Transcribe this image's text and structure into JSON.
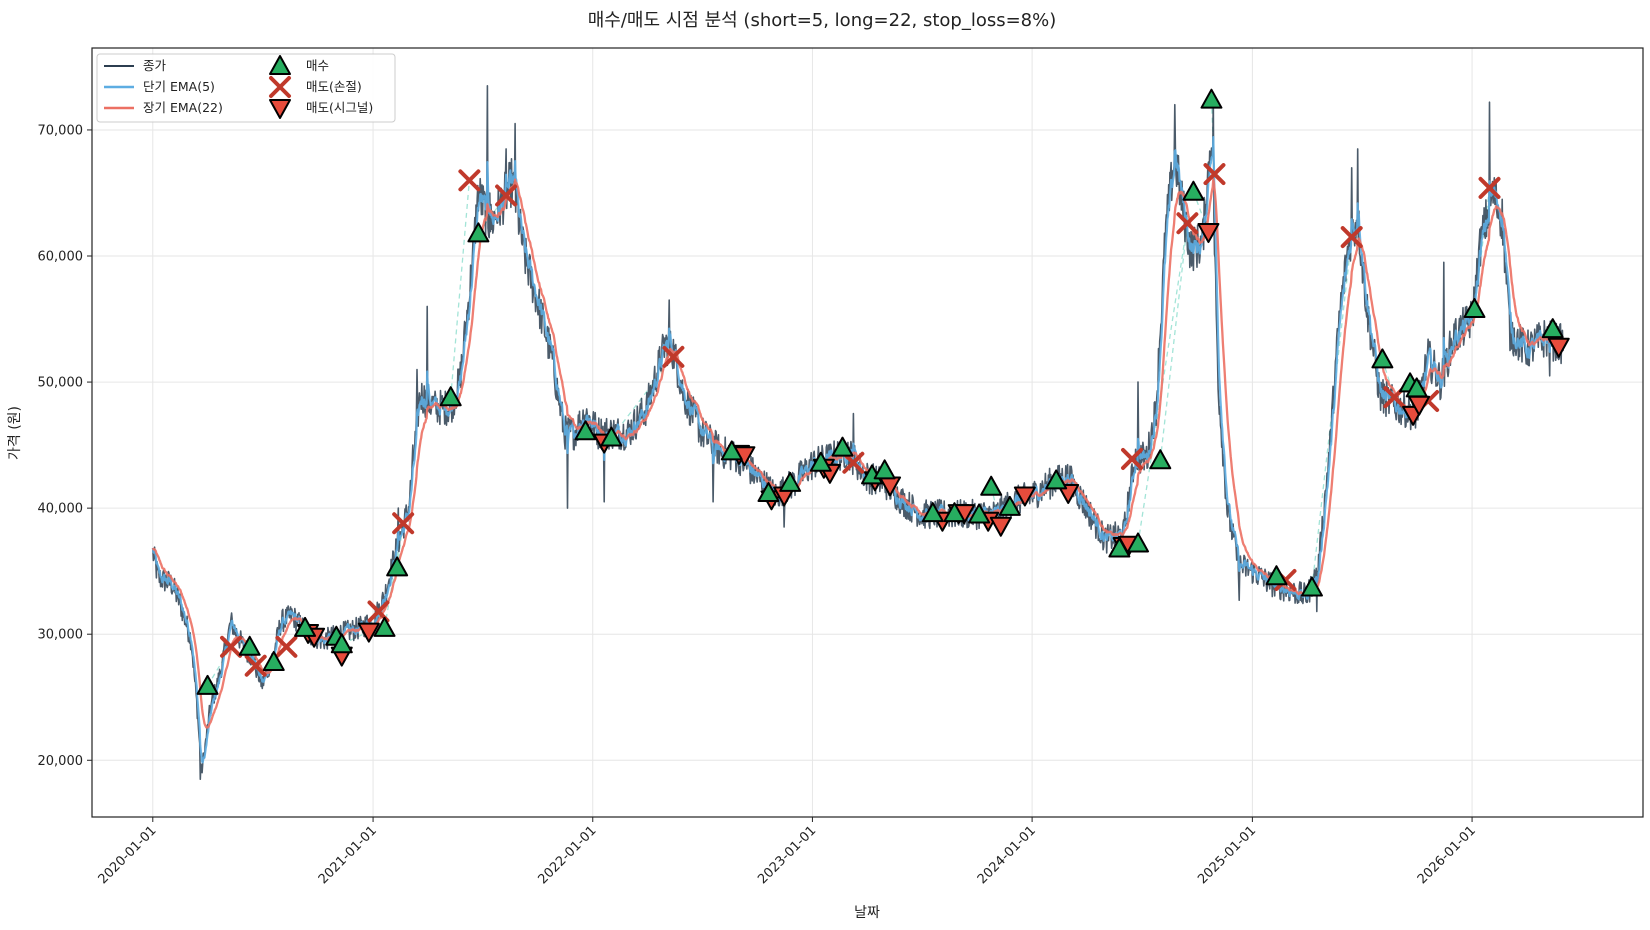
{
  "chart_data": {
    "type": "line",
    "title": "매수/매도 시점 분석 (short=5, long=22, stop_loss=8%)",
    "xlabel": "날짜",
    "ylabel": "가격 (원)",
    "xlim": [
      "2019-09-22",
      "2026-10-12"
    ],
    "ylim": [
      15500,
      76500
    ],
    "grid": true,
    "legend_position": "top-left",
    "x_ticks": [
      "2020-01-01",
      "2021-01-01",
      "2022-01-01",
      "2023-01-01",
      "2024-01-01",
      "2025-01-01",
      "2026-01-01"
    ],
    "y_ticks": [
      20000,
      30000,
      40000,
      50000,
      60000,
      70000
    ],
    "y_tick_labels": [
      "20,000",
      "30,000",
      "40,000",
      "50,000",
      "60,000",
      "70,000"
    ],
    "legend": {
      "close": "종가",
      "ema_short": "단기 EMA(5)",
      "ema_long": "장기 EMA(22)",
      "buy": "매수",
      "sell_stop": "매도(손절)",
      "sell_signal": "매도(시그널)"
    },
    "colors": {
      "close": "#2c3e50",
      "ema_short": "#5dade2",
      "ema_long": "#ec7063",
      "buy": "#27ae60",
      "sell_stop": "#c0392b",
      "sell_signal": "#e74c3c",
      "trade_link": "#a3e4d7"
    },
    "price_keypoints": [
      [
        "2020-01-01",
        36500
      ],
      [
        "2020-01-10",
        34500
      ],
      [
        "2020-02-01",
        34000
      ],
      [
        "2020-02-15",
        32500
      ],
      [
        "2020-03-05",
        29500
      ],
      [
        "2020-03-15",
        24000
      ],
      [
        "2020-03-22",
        19000
      ],
      [
        "2020-04-05",
        24000
      ],
      [
        "2020-04-20",
        26500
      ],
      [
        "2020-05-10",
        31000
      ],
      [
        "2020-05-25",
        29500
      ],
      [
        "2020-06-15",
        28000
      ],
      [
        "2020-07-01",
        26000
      ],
      [
        "2020-07-20",
        28500
      ],
      [
        "2020-08-01",
        31000
      ],
      [
        "2020-08-20",
        31500
      ],
      [
        "2020-09-15",
        30000
      ],
      [
        "2020-10-10",
        29500
      ],
      [
        "2020-11-05",
        30000
      ],
      [
        "2020-12-10",
        30500
      ],
      [
        "2021-01-01",
        31000
      ],
      [
        "2021-01-20",
        33000
      ],
      [
        "2021-02-10",
        37000
      ],
      [
        "2021-03-01",
        40000
      ],
      [
        "2021-03-20",
        49000
      ],
      [
        "2021-04-15",
        48000
      ],
      [
        "2021-05-10",
        48000
      ],
      [
        "2021-05-25",
        50000
      ],
      [
        "2021-06-10",
        57000
      ],
      [
        "2021-06-25",
        65000
      ],
      [
        "2021-07-15",
        62500
      ],
      [
        "2021-08-01",
        64000
      ],
      [
        "2021-08-20",
        66000
      ],
      [
        "2021-09-10",
        60000
      ],
      [
        "2021-10-01",
        56500
      ],
      [
        "2021-10-25",
        52000
      ],
      [
        "2021-11-15",
        46000
      ],
      [
        "2021-12-01",
        46000
      ],
      [
        "2021-12-20",
        47500
      ],
      [
        "2022-01-10",
        46000
      ],
      [
        "2022-02-01",
        46000
      ],
      [
        "2022-03-01",
        46000
      ],
      [
        "2022-04-01",
        48000
      ],
      [
        "2022-05-01",
        53000
      ],
      [
        "2022-05-15",
        52500
      ],
      [
        "2022-06-01",
        49000
      ],
      [
        "2022-07-01",
        46000
      ],
      [
        "2022-08-01",
        44500
      ],
      [
        "2022-09-01",
        44000
      ],
      [
        "2022-10-01",
        42500
      ],
      [
        "2022-11-01",
        41000
      ],
      [
        "2022-12-01",
        42000
      ],
      [
        "2023-01-01",
        43500
      ],
      [
        "2023-02-01",
        44000
      ],
      [
        "2023-03-01",
        44500
      ],
      [
        "2023-04-01",
        42500
      ],
      [
        "2023-05-01",
        42000
      ],
      [
        "2023-06-01",
        40500
      ],
      [
        "2023-07-01",
        39500
      ],
      [
        "2023-08-01",
        39500
      ],
      [
        "2023-09-01",
        39500
      ],
      [
        "2023-10-01",
        39500
      ],
      [
        "2023-11-01",
        39500
      ],
      [
        "2023-12-01",
        40500
      ],
      [
        "2024-01-01",
        41000
      ],
      [
        "2024-02-01",
        42000
      ],
      [
        "2024-03-01",
        42500
      ],
      [
        "2024-04-01",
        40000
      ],
      [
        "2024-05-01",
        37500
      ],
      [
        "2024-06-01",
        38000
      ],
      [
        "2024-06-20",
        44000
      ],
      [
        "2024-07-10",
        44000
      ],
      [
        "2024-07-25",
        48000
      ],
      [
        "2024-08-10",
        62000
      ],
      [
        "2024-08-25",
        68000
      ],
      [
        "2024-09-05",
        64500
      ],
      [
        "2024-09-20",
        60500
      ],
      [
        "2024-10-10",
        61000
      ],
      [
        "2024-10-25",
        70000
      ],
      [
        "2024-11-05",
        50000
      ],
      [
        "2024-11-20",
        40000
      ],
      [
        "2024-12-10",
        35500
      ],
      [
        "2025-01-01",
        35000
      ],
      [
        "2025-02-01",
        34000
      ],
      [
        "2025-03-01",
        33500
      ],
      [
        "2025-04-01",
        33000
      ],
      [
        "2025-04-20",
        35000
      ],
      [
        "2025-05-10",
        45000
      ],
      [
        "2025-05-25",
        55000
      ],
      [
        "2025-06-10",
        61000
      ],
      [
        "2025-06-25",
        63000
      ],
      [
        "2025-07-10",
        56000
      ],
      [
        "2025-08-01",
        49000
      ],
      [
        "2025-09-01",
        48000
      ],
      [
        "2025-10-01",
        47500
      ],
      [
        "2025-10-20",
        52000
      ],
      [
        "2025-11-10",
        50000
      ],
      [
        "2025-12-01",
        53500
      ],
      [
        "2026-01-01",
        55000
      ],
      [
        "2026-01-15",
        61000
      ],
      [
        "2026-02-05",
        65000
      ],
      [
        "2026-02-20",
        63000
      ],
      [
        "2026-03-05",
        54000
      ],
      [
        "2026-04-01",
        52500
      ],
      [
        "2026-05-01",
        53500
      ],
      [
        "2026-06-01",
        53000
      ]
    ],
    "close_spikes": [
      [
        "2020-03-20",
        18500
      ],
      [
        "2020-12-22",
        31500
      ],
      [
        "2021-01-05",
        32000
      ],
      [
        "2021-02-12",
        40000
      ],
      [
        "2021-03-08",
        45000
      ],
      [
        "2021-03-15",
        51000
      ],
      [
        "2021-04-01",
        56000
      ],
      [
        "2021-07-10",
        73500
      ],
      [
        "2021-07-14",
        65000
      ],
      [
        "2021-08-10",
        68500
      ],
      [
        "2021-08-25",
        70500
      ],
      [
        "2021-11-20",
        40000
      ],
      [
        "2022-01-20",
        40500
      ],
      [
        "2022-05-08",
        56500
      ],
      [
        "2022-07-20",
        40500
      ],
      [
        "2022-11-15",
        38500
      ],
      [
        "2023-03-10",
        47500
      ],
      [
        "2024-06-25",
        50000
      ],
      [
        "2024-08-25",
        72000
      ],
      [
        "2024-10-28",
        72500
      ],
      [
        "2024-12-10",
        32700
      ],
      [
        "2025-04-18",
        31800
      ],
      [
        "2025-06-15",
        67000
      ],
      [
        "2025-06-25",
        68500
      ],
      [
        "2025-11-15",
        59500
      ],
      [
        "2026-01-30",
        72200
      ],
      [
        "2026-05-10",
        50500
      ]
    ],
    "buy": [
      [
        "2020-04-01",
        25900
      ],
      [
        "2020-06-10",
        29000
      ],
      [
        "2020-07-20",
        27800
      ],
      [
        "2020-09-10",
        30500
      ],
      [
        "2020-11-01",
        29800
      ],
      [
        "2020-11-10",
        29200
      ],
      [
        "2021-01-20",
        30500
      ],
      [
        "2021-02-10",
        35300
      ],
      [
        "2021-05-10",
        48800
      ],
      [
        "2021-06-25",
        61800
      ],
      [
        "2021-12-20",
        46100
      ],
      [
        "2022-02-01",
        45600
      ],
      [
        "2022-08-20",
        44500
      ],
      [
        "2022-10-20",
        41200
      ],
      [
        "2022-11-25",
        42000
      ],
      [
        "2023-01-15",
        43600
      ],
      [
        "2023-02-20",
        44800
      ],
      [
        "2023-04-10",
        42600
      ],
      [
        "2023-05-01",
        43000
      ],
      [
        "2023-07-20",
        39600
      ],
      [
        "2023-08-25",
        39600
      ],
      [
        "2023-10-05",
        39500
      ],
      [
        "2023-10-25",
        41700
      ],
      [
        "2023-11-25",
        40100
      ],
      [
        "2024-02-10",
        42200
      ],
      [
        "2024-05-25",
        36800
      ],
      [
        "2024-06-25",
        37200
      ],
      [
        "2024-08-01",
        43800
      ],
      [
        "2024-09-25",
        65100
      ],
      [
        "2024-10-25",
        72400
      ],
      [
        "2025-02-10",
        34600
      ],
      [
        "2025-04-10",
        33700
      ],
      [
        "2025-08-05",
        51800
      ],
      [
        "2025-09-20",
        49900
      ],
      [
        "2025-10-01",
        49500
      ],
      [
        "2026-01-05",
        55800
      ],
      [
        "2026-05-15",
        54200
      ]
    ],
    "sell_stop": [
      [
        "2020-05-10",
        29000
      ],
      [
        "2020-06-20",
        27500
      ],
      [
        "2020-08-10",
        29000
      ],
      [
        "2021-01-10",
        31800
      ],
      [
        "2021-02-20",
        38800
      ],
      [
        "2021-06-10",
        66000
      ],
      [
        "2021-08-10",
        64800
      ],
      [
        "2022-05-15",
        52000
      ],
      [
        "2023-03-10",
        43600
      ],
      [
        "2024-06-15",
        43900
      ],
      [
        "2024-09-15",
        62600
      ],
      [
        "2024-10-30",
        66500
      ],
      [
        "2025-02-25",
        34300
      ],
      [
        "2025-06-15",
        61500
      ],
      [
        "2025-08-25",
        48800
      ],
      [
        "2025-10-20",
        48500
      ],
      [
        "2026-01-30",
        65400
      ]
    ],
    "sell_signal": [
      [
        "2020-09-15",
        30100
      ],
      [
        "2020-09-25",
        29800
      ],
      [
        "2020-11-10",
        28300
      ],
      [
        "2020-12-25",
        30200
      ],
      [
        "2022-01-20",
        45200
      ],
      [
        "2022-09-01",
        44300
      ],
      [
        "2022-09-10",
        44200
      ],
      [
        "2022-10-25",
        40700
      ],
      [
        "2022-11-15",
        41000
      ],
      [
        "2023-01-20",
        43200
      ],
      [
        "2023-01-30",
        42800
      ],
      [
        "2023-04-15",
        42200
      ],
      [
        "2023-05-10",
        41800
      ],
      [
        "2023-08-05",
        39000
      ],
      [
        "2023-09-01",
        39600
      ],
      [
        "2023-09-10",
        39600
      ],
      [
        "2023-10-20",
        39000
      ],
      [
        "2023-11-10",
        38600
      ],
      [
        "2023-12-20",
        41000
      ],
      [
        "2024-03-01",
        41200
      ],
      [
        "2024-06-01",
        37000
      ],
      [
        "2024-06-10",
        37100
      ],
      [
        "2024-10-20",
        61900
      ],
      [
        "2025-09-25",
        47400
      ],
      [
        "2025-10-05",
        48200
      ],
      [
        "2026-05-25",
        52800
      ]
    ]
  }
}
